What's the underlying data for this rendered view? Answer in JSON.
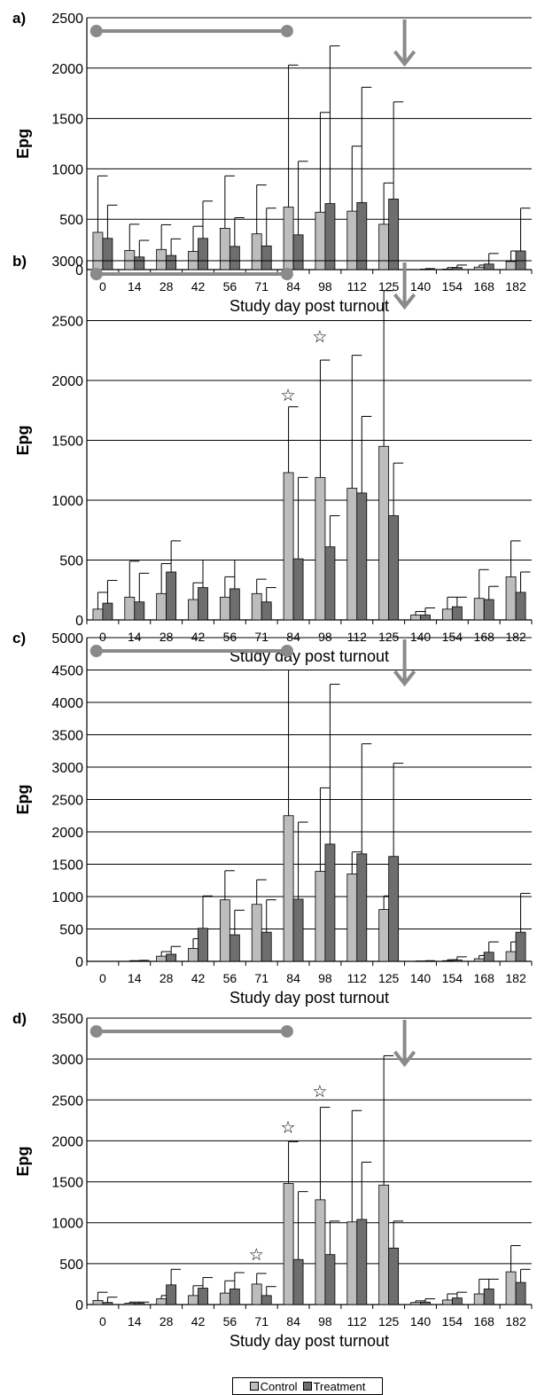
{
  "figure": {
    "legend": [
      {
        "label": "Control",
        "color": "#bdbdbd"
      },
      {
        "label": "Treatment",
        "color": "#6e6e6e"
      }
    ]
  },
  "chart_data": [
    {
      "type": "bar",
      "panel": "a)",
      "xlabel": "Study day post turnout",
      "ylabel": "Epg",
      "ylim": [
        0,
        2500
      ],
      "yticks": [
        0,
        500,
        1000,
        1500,
        2000,
        2500
      ],
      "grid": true,
      "categories": [
        "0",
        "14",
        "28",
        "42",
        "56",
        "71",
        "84",
        "98",
        "112",
        "125",
        "140",
        "154",
        "168",
        "182"
      ],
      "series": [
        {
          "name": "Control",
          "values": [
            370,
            190,
            200,
            180,
            410,
            355,
            620,
            570,
            580,
            450,
            0,
            5,
            25,
            80
          ],
          "error": [
            930,
            450,
            445,
            430,
            930,
            840,
            2030,
            1560,
            1225,
            860,
            0,
            20,
            45,
            185
          ]
        },
        {
          "name": "Treatment",
          "values": [
            310,
            125,
            140,
            310,
            230,
            235,
            345,
            655,
            665,
            700,
            5,
            20,
            55,
            185
          ],
          "error": [
            640,
            290,
            305,
            680,
            515,
            610,
            1075,
            2220,
            1810,
            1665,
            10,
            45,
            160,
            610
          ]
        }
      ],
      "period_bar": {
        "from_day": "0",
        "to_day": "84"
      },
      "arrow_day": "140",
      "stars": []
    },
    {
      "type": "bar",
      "panel": "b)",
      "xlabel": "Study day post turnout",
      "ylabel": "Epg",
      "ylim": [
        0,
        3000
      ],
      "yticks": [
        0,
        500,
        1000,
        1500,
        2000,
        2500,
        3000
      ],
      "grid": true,
      "categories": [
        "0",
        "14",
        "28",
        "42",
        "56",
        "71",
        "84",
        "98",
        "112",
        "125",
        "140",
        "154",
        "168",
        "182"
      ],
      "series": [
        {
          "name": "Control",
          "values": [
            90,
            190,
            220,
            170,
            190,
            220,
            1230,
            1190,
            1100,
            1450,
            40,
            90,
            180,
            360
          ],
          "error": [
            230,
            490,
            470,
            310,
            360,
            340,
            1780,
            2170,
            2210,
            2750,
            70,
            190,
            420,
            660
          ]
        },
        {
          "name": "Treatment",
          "values": [
            140,
            150,
            400,
            270,
            260,
            150,
            510,
            610,
            1060,
            870,
            40,
            110,
            170,
            230
          ],
          "error": [
            330,
            390,
            660,
            500,
            500,
            270,
            1190,
            870,
            1700,
            1310,
            100,
            190,
            280,
            400
          ]
        }
      ],
      "period_bar": {
        "from_day": "0",
        "to_day": "84"
      },
      "arrow_day": "140",
      "stars": [
        {
          "category": "84",
          "y": 1880
        },
        {
          "category": "98",
          "y": 2370
        }
      ]
    },
    {
      "type": "bar",
      "panel": "c)",
      "xlabel": "Study day post turnout",
      "ylabel": "Epg",
      "ylim": [
        0,
        5000
      ],
      "yticks": [
        0,
        500,
        1000,
        1500,
        2000,
        2500,
        3000,
        3500,
        4000,
        4500,
        5000
      ],
      "grid": true,
      "categories": [
        "0",
        "14",
        "28",
        "42",
        "56",
        "71",
        "84",
        "98",
        "112",
        "125",
        "140",
        "154",
        "168",
        "182"
      ],
      "series": [
        {
          "name": "Control",
          "values": [
            0,
            0,
            80,
            200,
            950,
            880,
            2250,
            1390,
            1350,
            800,
            0,
            10,
            40,
            150
          ],
          "error": [
            0,
            10,
            150,
            350,
            1400,
            1260,
            4500,
            2680,
            1690,
            1010,
            5,
            25,
            90,
            300
          ]
        },
        {
          "name": "Treatment",
          "values": [
            0,
            5,
            110,
            510,
            410,
            450,
            960,
            1810,
            1660,
            1620,
            0,
            20,
            140,
            450
          ],
          "error": [
            0,
            15,
            230,
            1010,
            790,
            950,
            2150,
            4280,
            3360,
            3060,
            10,
            70,
            300,
            1050
          ]
        }
      ],
      "period_bar": {
        "from_day": "0",
        "to_day": "84"
      },
      "arrow_day": "140",
      "stars": []
    },
    {
      "type": "bar",
      "panel": "d)",
      "xlabel": "Study day post turnout",
      "ylabel": "Epg",
      "ylim": [
        0,
        3500
      ],
      "yticks": [
        0,
        500,
        1000,
        1500,
        2000,
        2500,
        3000,
        3500
      ],
      "grid": true,
      "categories": [
        "0",
        "14",
        "28",
        "42",
        "56",
        "71",
        "84",
        "98",
        "112",
        "125",
        "140",
        "154",
        "168",
        "182"
      ],
      "series": [
        {
          "name": "Control",
          "values": [
            50,
            15,
            70,
            110,
            140,
            250,
            1480,
            1280,
            1010,
            1460,
            25,
            55,
            130,
            400
          ],
          "error": [
            150,
            30,
            110,
            230,
            290,
            380,
            1990,
            2410,
            2370,
            3040,
            45,
            130,
            310,
            720
          ]
        },
        {
          "name": "Treatment",
          "values": [
            25,
            15,
            240,
            200,
            190,
            110,
            550,
            610,
            1040,
            690,
            30,
            80,
            190,
            270
          ],
          "error": [
            90,
            30,
            430,
            330,
            390,
            220,
            1380,
            1020,
            1740,
            1020,
            70,
            150,
            310,
            430
          ]
        }
      ],
      "period_bar": {
        "from_day": "0",
        "to_day": "84"
      },
      "arrow_day": "140",
      "stars": [
        {
          "category": "71",
          "y": 620
        },
        {
          "category": "84",
          "y": 2170
        },
        {
          "category": "98",
          "y": 2610
        }
      ]
    }
  ]
}
